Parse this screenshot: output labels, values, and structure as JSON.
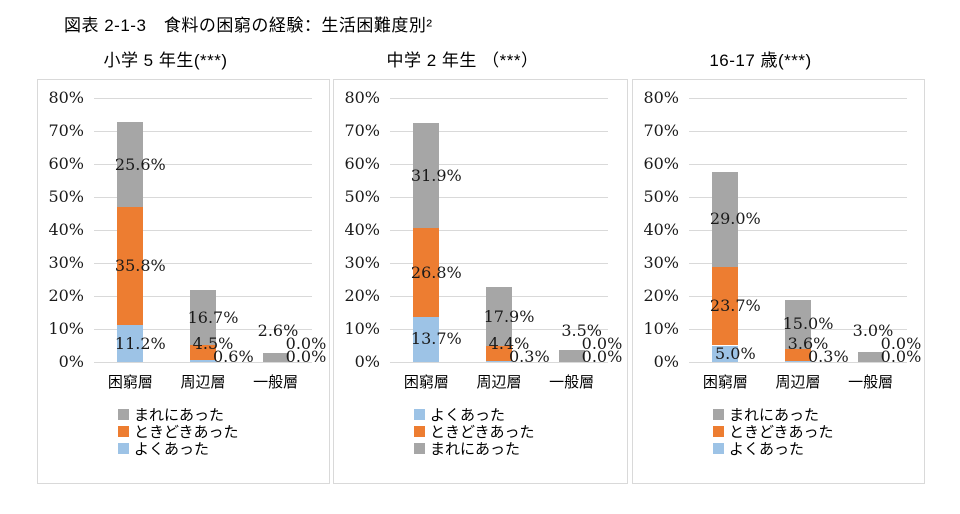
{
  "page": {
    "title": "図表 2-1-3　食料の困窮の経験：生活困難度別²"
  },
  "colors": {
    "grid": "#D9D9D9",
    "panel_border": "#D9D9D9",
    "blue": "#9DC3E6",
    "orange": "#ED7D31",
    "gray": "#A6A6A6"
  },
  "chart_data": [
    {
      "type": "bar",
      "stacked": true,
      "title": "小学 5 年生(***)",
      "categories": [
        "困窮層",
        "周辺層",
        "一般層"
      ],
      "series": [
        {
          "name": "よくあった",
          "color": "#9DC3E6",
          "values": [
            11.2,
            0.6,
            0.0
          ]
        },
        {
          "name": "ときどきあった",
          "color": "#ED7D31",
          "values": [
            35.8,
            4.5,
            0.0
          ]
        },
        {
          "name": "まれにあった",
          "color": "#A6A6A6",
          "values": [
            25.6,
            16.7,
            2.6
          ]
        }
      ],
      "legend_order": [
        2,
        1,
        0
      ],
      "legend_position": "bottom",
      "ylim": [
        0,
        80
      ],
      "yticks": [
        "0%",
        "10%",
        "20%",
        "30%",
        "40%",
        "50%",
        "60%",
        "70%",
        "80%"
      ],
      "grid": true
    },
    {
      "type": "bar",
      "stacked": true,
      "title": "中学 2 年生 （***）",
      "categories": [
        "困窮層",
        "周辺層",
        "一般層"
      ],
      "series": [
        {
          "name": "よくあった",
          "color": "#9DC3E6",
          "values": [
            13.7,
            0.3,
            0.0
          ]
        },
        {
          "name": "ときどきあった",
          "color": "#ED7D31",
          "values": [
            26.8,
            4.4,
            0.0
          ]
        },
        {
          "name": "まれにあった",
          "color": "#A6A6A6",
          "values": [
            31.9,
            17.9,
            3.5
          ]
        }
      ],
      "legend_order": [
        0,
        1,
        2
      ],
      "legend_position": "bottom",
      "ylim": [
        0,
        80
      ],
      "yticks": [
        "0%",
        "10%",
        "20%",
        "30%",
        "40%",
        "50%",
        "60%",
        "70%",
        "80%"
      ],
      "grid": true
    },
    {
      "type": "bar",
      "stacked": true,
      "title": "16-17 歳(***)",
      "categories": [
        "困窮層",
        "周辺層",
        "一般層"
      ],
      "series": [
        {
          "name": "よくあった",
          "color": "#9DC3E6",
          "values": [
            5.0,
            0.3,
            0.0
          ]
        },
        {
          "name": "ときどきあった",
          "color": "#ED7D31",
          "values": [
            23.7,
            3.6,
            0.0
          ]
        },
        {
          "name": "まれにあった",
          "color": "#A6A6A6",
          "values": [
            29.0,
            15.0,
            3.0
          ]
        }
      ],
      "legend_order": [
        2,
        1,
        0
      ],
      "legend_position": "bottom",
      "ylim": [
        0,
        80
      ],
      "yticks": [
        "0%",
        "10%",
        "20%",
        "30%",
        "40%",
        "50%",
        "60%",
        "70%",
        "80%"
      ],
      "grid": true
    }
  ]
}
